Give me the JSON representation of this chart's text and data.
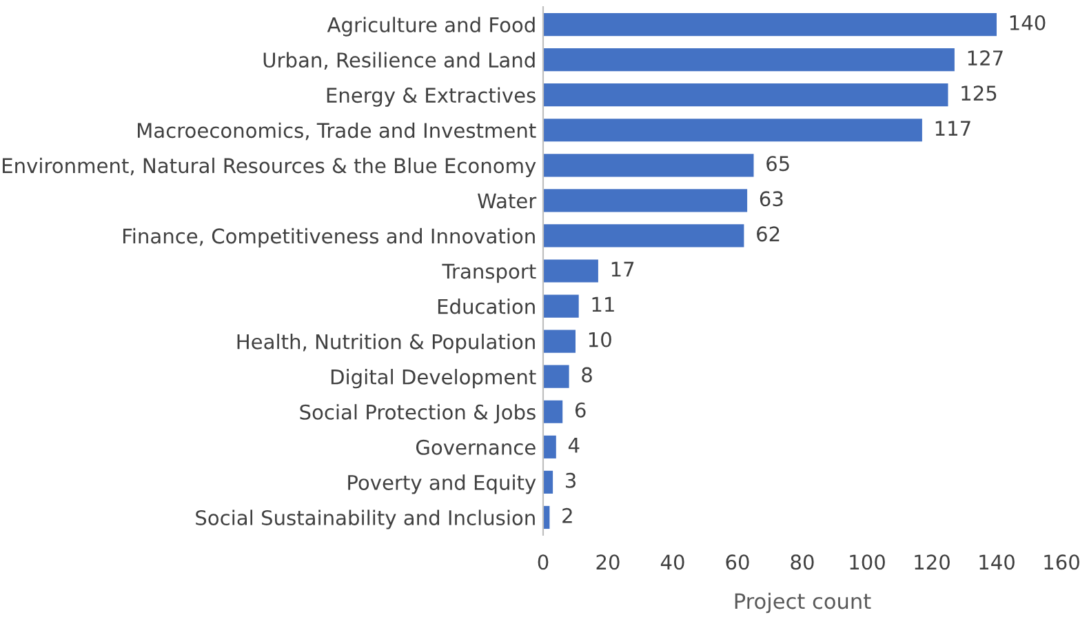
{
  "chart_data": {
    "type": "bar",
    "orientation": "horizontal",
    "categories": [
      "Agriculture and Food",
      "Urban, Resilience and Land",
      "Energy & Extractives",
      "Macroeconomics, Trade and Investment",
      "Environment, Natural Resources & the Blue Economy",
      "Water",
      "Finance, Competitiveness and Innovation",
      "Transport",
      "Education",
      "Health, Nutrition & Population",
      "Digital Development",
      "Social Protection & Jobs",
      "Governance",
      "Poverty and Equity",
      "Social Sustainability and Inclusion"
    ],
    "values": [
      140,
      127,
      125,
      117,
      65,
      63,
      62,
      17,
      11,
      10,
      8,
      6,
      4,
      3,
      2
    ],
    "color": "#4472c4",
    "xlabel": "Project count",
    "xlim": [
      0,
      160
    ],
    "xticks": [
      0,
      20,
      40,
      60,
      80,
      100,
      120,
      140,
      160
    ],
    "data_labels": true,
    "grid": false,
    "legend": false
  }
}
